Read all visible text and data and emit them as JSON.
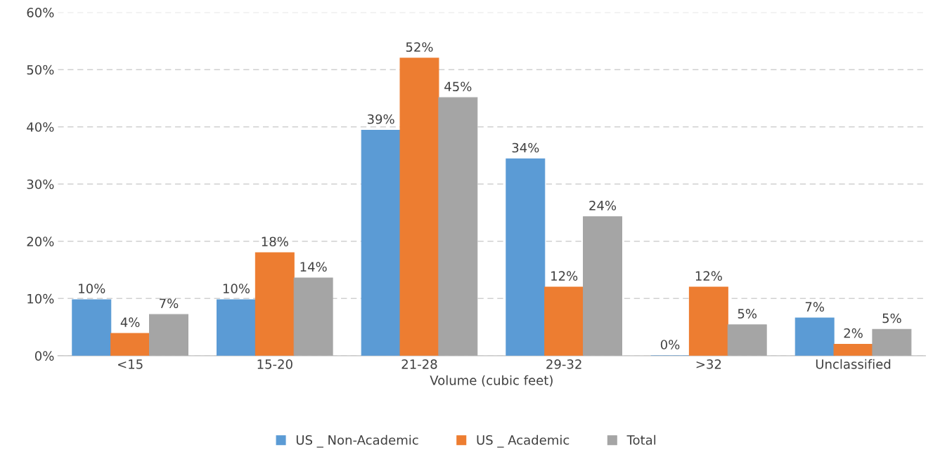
{
  "chart_data": {
    "type": "bar",
    "xlabel": "Volume (cubic feet)",
    "categories": [
      "<15",
      "15-20",
      "21-28",
      "29-32",
      ">32",
      "Unclassified"
    ],
    "series": [
      {
        "name": "US _ Non-Academic",
        "color": "#5b9bd5",
        "values": [
          9.8,
          9.8,
          39.4,
          34.4,
          0,
          6.6
        ],
        "value_labels": [
          "10%",
          "10%",
          "39%",
          "34%",
          "0%",
          "7%"
        ]
      },
      {
        "name": "US _ Academic",
        "color": "#ed7d31",
        "values": [
          3.9,
          18.0,
          52.0,
          12.0,
          12.0,
          2.0
        ],
        "value_labels": [
          "4%",
          "18%",
          "52%",
          "12%",
          "12%",
          "2%"
        ]
      },
      {
        "name": "Total",
        "color": "#a5a5a5",
        "values": [
          7.2,
          13.6,
          45.1,
          24.3,
          5.4,
          4.6
        ],
        "value_labels": [
          "7%",
          "14%",
          "45%",
          "24%",
          "5%",
          "5%"
        ]
      }
    ],
    "ylim": [
      0,
      60
    ],
    "yticks": [
      {
        "value": 0,
        "label": "0%"
      },
      {
        "value": 10,
        "label": "10%"
      },
      {
        "value": 20,
        "label": "20%"
      },
      {
        "value": 30,
        "label": "30%"
      },
      {
        "value": 40,
        "label": "40%"
      },
      {
        "value": 50,
        "label": "50%"
      },
      {
        "value": 60,
        "label": "60%"
      }
    ],
    "grid": "y",
    "legend": "bottom"
  }
}
